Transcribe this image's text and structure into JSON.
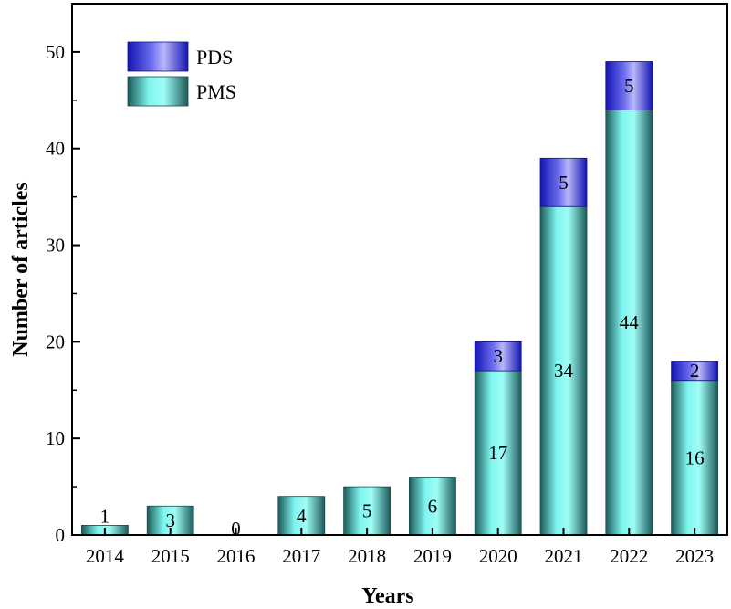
{
  "chart_data": {
    "type": "bar",
    "stacked": true,
    "categories": [
      "2014",
      "2015",
      "2016",
      "2017",
      "2018",
      "2019",
      "2020",
      "2021",
      "2022",
      "2023"
    ],
    "series": [
      {
        "name": "PMS",
        "values": [
          1,
          3,
          0,
          4,
          5,
          6,
          17,
          34,
          44,
          16
        ],
        "color": "#7ff5ee"
      },
      {
        "name": "PDS",
        "values": [
          0,
          0,
          0,
          0,
          0,
          0,
          3,
          5,
          5,
          2
        ],
        "color": "#3a3adf"
      }
    ],
    "xlabel": "Years",
    "ylabel": "Number of articles",
    "ylim": [
      0,
      55
    ],
    "yticks": [
      0,
      10,
      20,
      30,
      40,
      50
    ],
    "legend_position": "top-left",
    "grid": false
  }
}
